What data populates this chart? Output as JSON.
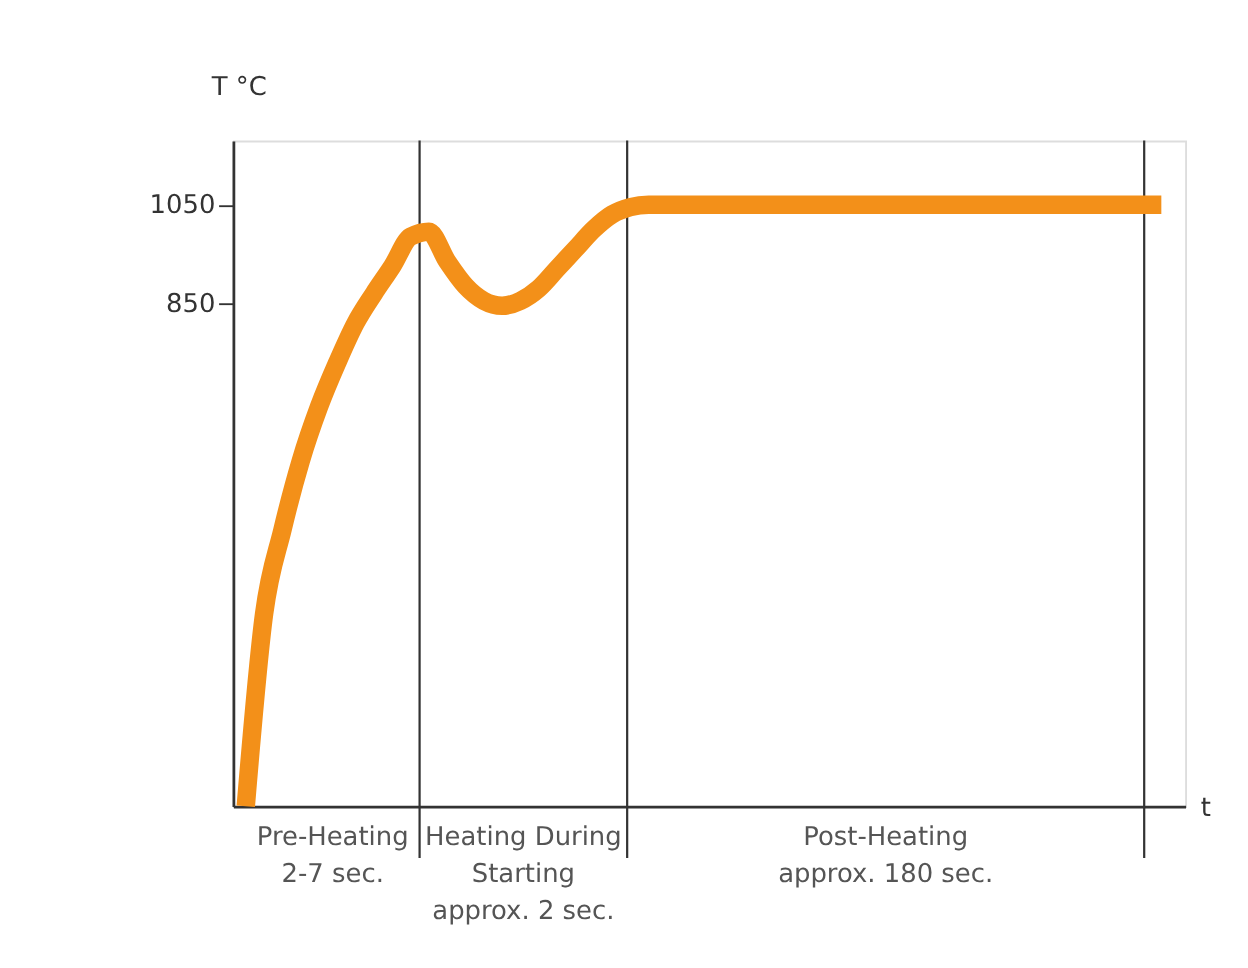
{
  "chart_data": {
    "type": "line",
    "xlabel": "t",
    "ylabel": "T °C",
    "categories": [
      null,
      null,
      null,
      null,
      null,
      null,
      null,
      null,
      null,
      null,
      null,
      null,
      null,
      null,
      null,
      null,
      null,
      null,
      null,
      null,
      null,
      null,
      null,
      null,
      null,
      null,
      null,
      null,
      null,
      null,
      null,
      null,
      null,
      null,
      null,
      null,
      null,
      null,
      null,
      null,
      null,
      null,
      null,
      null,
      null,
      null,
      null,
      null,
      null,
      null,
      null
    ],
    "series": [
      {
        "color": "#f39019",
        "values": [
          -170,
          220,
          390,
          530,
          640,
          730,
          810,
          870,
          925,
          985,
          995,
          935,
          885,
          855,
          845,
          855,
          880,
          920,
          960,
          1000,
          1030,
          1045,
          1050,
          1050,
          1050,
          1050,
          1050,
          1050,
          1050,
          1050,
          1050,
          1050,
          1050,
          1050,
          1050,
          1050,
          1050,
          1050,
          1050,
          1050,
          1050,
          1050,
          1050,
          1050,
          1050,
          1050,
          1050,
          1050,
          1050,
          1050,
          1050
        ]
      }
    ],
    "ylim": [
      -170,
      1180
    ],
    "yticks": [
      850,
      1050
    ],
    "annotations": [
      "Pre-Heating\n2-7 sec.",
      "Heating During\nStarting\napprox. 2 sec.",
      "Post-Heating\napprox. 180 sec."
    ],
    "grid": false,
    "marker": "none",
    "line_style": "solid"
  }
}
